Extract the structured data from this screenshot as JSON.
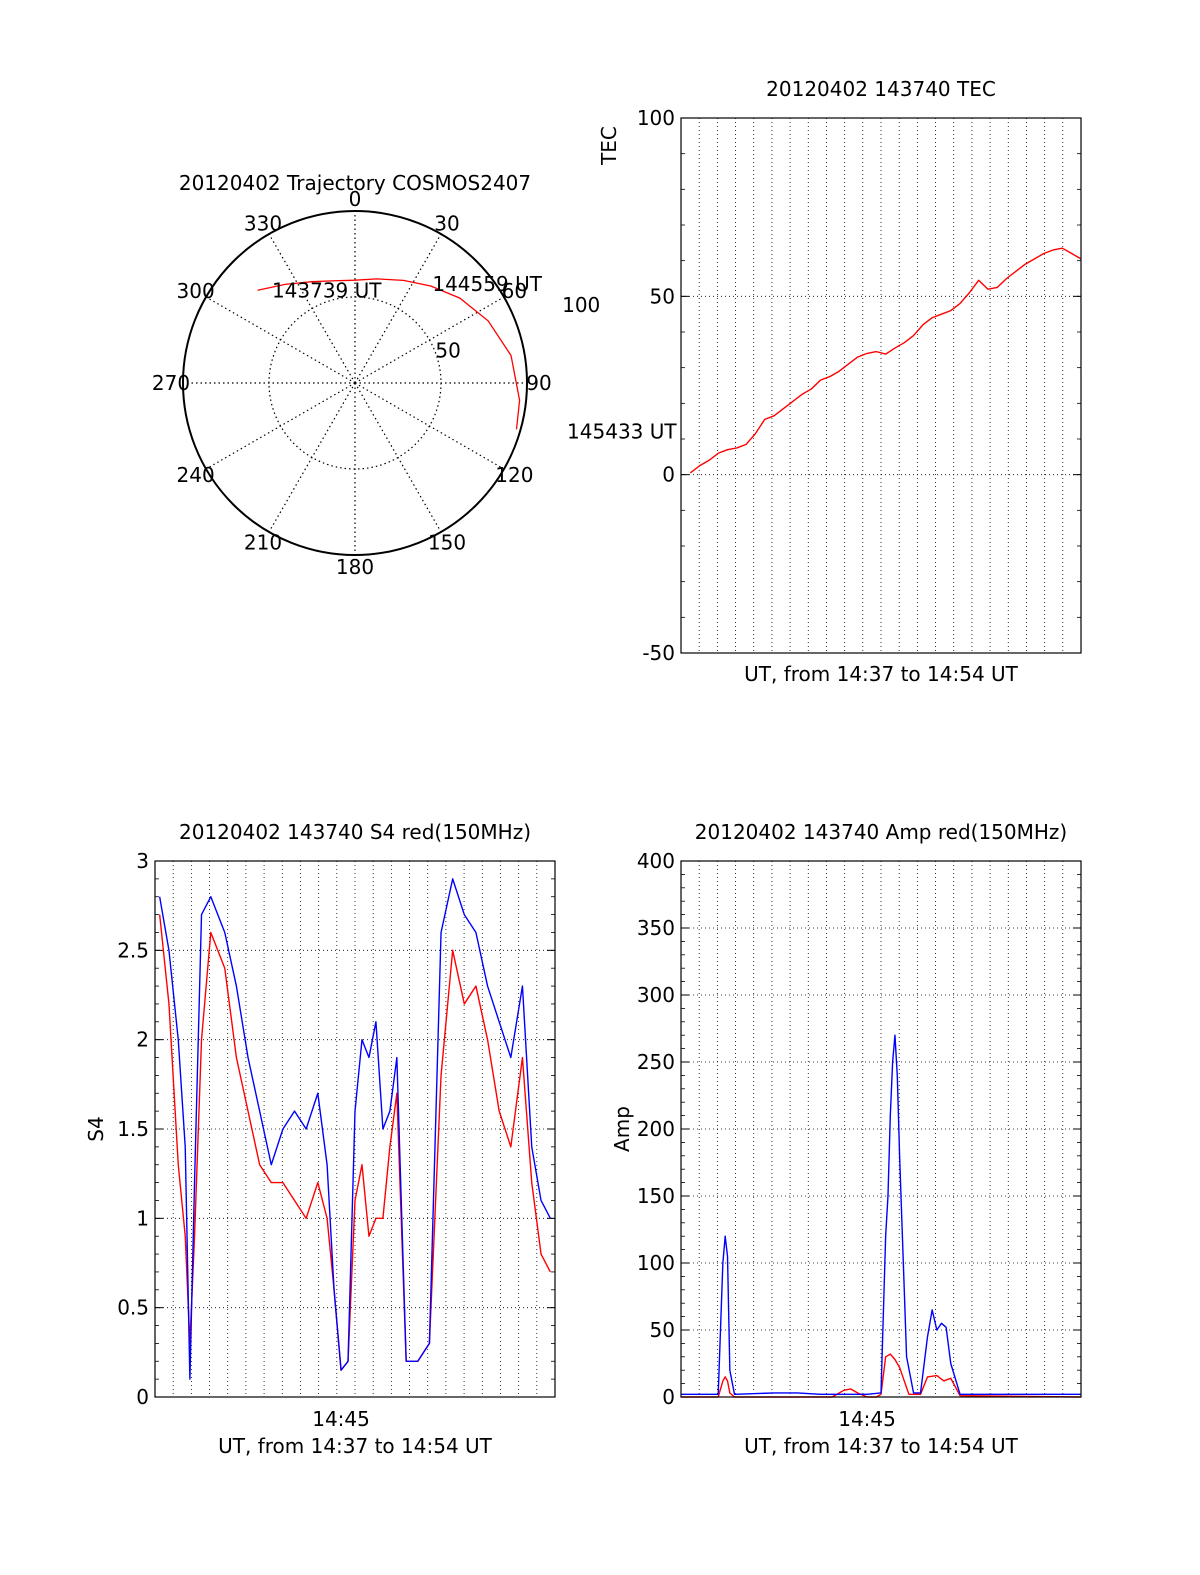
{
  "colors": {
    "background": "#ffffff",
    "axis": "#000000",
    "grid": "#000000",
    "red": "#ff0000",
    "blue": "#0000ff"
  },
  "chart_data": [
    {
      "id": "trajectory",
      "type": "polar",
      "title": "20120402 Trajectory COSMOS2407",
      "azimuth_labels": [
        "0",
        "30",
        "60",
        "90",
        "120",
        "150",
        "180",
        "210",
        "240",
        "270",
        "300",
        "330"
      ],
      "radius_labels": [
        "50",
        "100"
      ],
      "radius_range": [
        0,
        90
      ],
      "grid": "dotted",
      "series": [
        {
          "color": "red",
          "points": [
            {
              "az": 313.6,
              "r": 70.4
            },
            {
              "az": 325,
              "r": 63.1
            },
            {
              "az": 337,
              "r": 57.6
            },
            {
              "az": 349,
              "r": 54.5
            },
            {
              "az": 0,
              "r": 53.8
            },
            {
              "az": 12,
              "r": 55.7
            },
            {
              "az": 25.3,
              "r": 59.4
            },
            {
              "az": 38,
              "r": 64.4
            },
            {
              "az": 51,
              "r": 70.6
            },
            {
              "az": 65,
              "r": 76.9
            },
            {
              "az": 80,
              "r": 82.9
            },
            {
              "az": 96,
              "r": 86.6
            },
            {
              "az": 106,
              "r": 87.9
            }
          ]
        }
      ],
      "annotations": [
        {
          "text": "143739 UT",
          "az": 316,
          "r": 68
        },
        {
          "text": "144559 UT",
          "az": 35,
          "r": 64
        },
        {
          "text": "145433 UT",
          "az": 103,
          "r": 110
        }
      ]
    },
    {
      "id": "tec",
      "type": "line",
      "title": "20120402 143740 TEC",
      "xlabel": "UT, from 14:37 to 14:54 UT",
      "ylabel": "TEC",
      "ylim": [
        -50,
        100
      ],
      "yticks": [
        "-50",
        "0",
        "50",
        "100"
      ],
      "xlim": [
        0,
        17.2
      ],
      "grid": true,
      "series": [
        {
          "color": "red",
          "x": [
            0.4,
            0.8,
            1.2,
            1.6,
            2.0,
            2.4,
            2.8,
            3.2,
            3.6,
            4.0,
            4.4,
            4.8,
            5.2,
            5.6,
            6.0,
            6.4,
            6.8,
            7.2,
            7.6,
            8.0,
            8.4,
            8.8,
            9.2,
            9.6,
            10.0,
            10.4,
            10.8,
            11.2,
            11.6,
            12.0,
            12.4,
            12.8,
            13.2,
            13.6,
            14.0,
            14.4,
            14.8,
            15.2,
            15.6,
            16.0,
            16.4,
            16.8,
            17.2
          ],
          "y": [
            0.5,
            2.5,
            4.0,
            6.0,
            7.0,
            7.5,
            8.5,
            11.5,
            15.5,
            16.5,
            18.5,
            20.5,
            22.5,
            24.0,
            26.5,
            27.5,
            29.0,
            31.0,
            33.0,
            34.0,
            34.5,
            33.8,
            35.5,
            37.0,
            39.0,
            42.0,
            44.0,
            45.0,
            46.0,
            48.0,
            51.0,
            54.5,
            52.0,
            52.5,
            55.0,
            57.0,
            59.0,
            60.5,
            62.0,
            63.0,
            63.5,
            62.0,
            60.5
          ]
        }
      ]
    },
    {
      "id": "s4",
      "type": "line",
      "title": "20120402 143740 S4 red(150MHz)",
      "xlabel": "UT, from 14:37 to 14:54 UT",
      "ylabel": "S4",
      "ylim": [
        0,
        3
      ],
      "yticks": [
        "0",
        "0.5",
        "1",
        "1.5",
        "2",
        "2.5",
        "3"
      ],
      "xtick_label": "14:45",
      "xtick_at": 8.0,
      "xlim": [
        0,
        17.2
      ],
      "grid": true,
      "series": [
        {
          "color": "red",
          "x": [
            0.2,
            0.6,
            1.0,
            1.3,
            1.5,
            1.7,
            2.0,
            2.4,
            3.0,
            3.5,
            4.0,
            4.5,
            5.0,
            5.5,
            6.0,
            6.5,
            7.0,
            7.4,
            7.7,
            8.0,
            8.3,
            8.6,
            8.9,
            9.2,
            9.5,
            9.8,
            10.1,
            10.4,
            10.8,
            11.3,
            11.8,
            12.3,
            12.8,
            13.3,
            13.8,
            14.3,
            14.8,
            15.3,
            15.8,
            16.2,
            16.6,
            17.0
          ],
          "y": [
            2.7,
            2.2,
            1.3,
            0.9,
            0.3,
            0.9,
            2.0,
            2.6,
            2.4,
            1.9,
            1.6,
            1.3,
            1.2,
            1.2,
            1.1,
            1.0,
            1.2,
            1.0,
            0.6,
            0.15,
            0.2,
            1.1,
            1.3,
            0.9,
            1.0,
            1.0,
            1.4,
            1.7,
            0.2,
            0.2,
            0.3,
            1.8,
            2.5,
            2.2,
            2.3,
            2.0,
            1.6,
            1.4,
            1.9,
            1.2,
            0.8,
            0.7
          ]
        },
        {
          "color": "blue",
          "x": [
            0.2,
            0.6,
            1.0,
            1.3,
            1.5,
            1.7,
            2.0,
            2.4,
            3.0,
            3.5,
            4.0,
            4.5,
            5.0,
            5.5,
            6.0,
            6.5,
            7.0,
            7.4,
            7.7,
            8.0,
            8.3,
            8.6,
            8.9,
            9.2,
            9.5,
            9.8,
            10.1,
            10.4,
            10.8,
            11.3,
            11.8,
            12.3,
            12.8,
            13.3,
            13.8,
            14.3,
            14.8,
            15.3,
            15.8,
            16.2,
            16.6,
            17.0
          ],
          "y": [
            2.8,
            2.5,
            2.0,
            1.4,
            0.1,
            1.2,
            2.7,
            2.8,
            2.6,
            2.3,
            1.9,
            1.6,
            1.3,
            1.5,
            1.6,
            1.5,
            1.7,
            1.3,
            0.6,
            0.15,
            0.2,
            1.6,
            2.0,
            1.9,
            2.1,
            1.5,
            1.6,
            1.9,
            0.2,
            0.2,
            0.3,
            2.6,
            2.9,
            2.7,
            2.6,
            2.3,
            2.1,
            1.9,
            2.3,
            1.4,
            1.1,
            1.0
          ]
        }
      ]
    },
    {
      "id": "amp",
      "type": "line",
      "title": "20120402 143740 Amp red(150MHz)",
      "xlabel": "UT, from 14:37 to 14:54 UT",
      "ylabel": "Amp",
      "ylim": [
        0,
        400
      ],
      "yticks": [
        "0",
        "50",
        "100",
        "150",
        "200",
        "250",
        "300",
        "350",
        "400"
      ],
      "xtick_label": "14:45",
      "xtick_at": 8.0,
      "xlim": [
        0,
        17.2
      ],
      "grid": true,
      "series": [
        {
          "color": "red",
          "x": [
            0.0,
            1.6,
            1.8,
            1.9,
            2.0,
            2.1,
            2.3,
            6.5,
            7.0,
            7.3,
            7.6,
            8.0,
            8.4,
            8.6,
            8.8,
            9.0,
            9.2,
            9.4,
            9.6,
            9.8,
            10.0,
            10.3,
            10.6,
            11.0,
            11.3,
            11.6,
            12.0,
            17.2
          ],
          "y": [
            0,
            0,
            12,
            15,
            12,
            3,
            0,
            0,
            5,
            6,
            3,
            0,
            0,
            2,
            30,
            32,
            28,
            22,
            12,
            2,
            2,
            2,
            15,
            16,
            12,
            14,
            1,
            0
          ]
        },
        {
          "color": "blue",
          "x": [
            0.0,
            1.0,
            1.6,
            1.8,
            1.9,
            2.0,
            2.1,
            2.3,
            4.0,
            5.0,
            6.0,
            7.0,
            8.0,
            8.6,
            8.8,
            8.9,
            9.0,
            9.1,
            9.2,
            9.3,
            9.4,
            9.5,
            9.7,
            10.0,
            10.3,
            10.6,
            10.8,
            11.0,
            11.2,
            11.4,
            11.6,
            12.0,
            17.2
          ],
          "y": [
            2,
            2,
            2,
            100,
            120,
            105,
            20,
            2,
            3,
            3,
            2,
            2,
            2,
            3,
            120,
            150,
            210,
            250,
            270,
            240,
            180,
            130,
            30,
            3,
            3,
            45,
            65,
            50,
            55,
            52,
            25,
            2,
            2
          ]
        }
      ]
    }
  ]
}
